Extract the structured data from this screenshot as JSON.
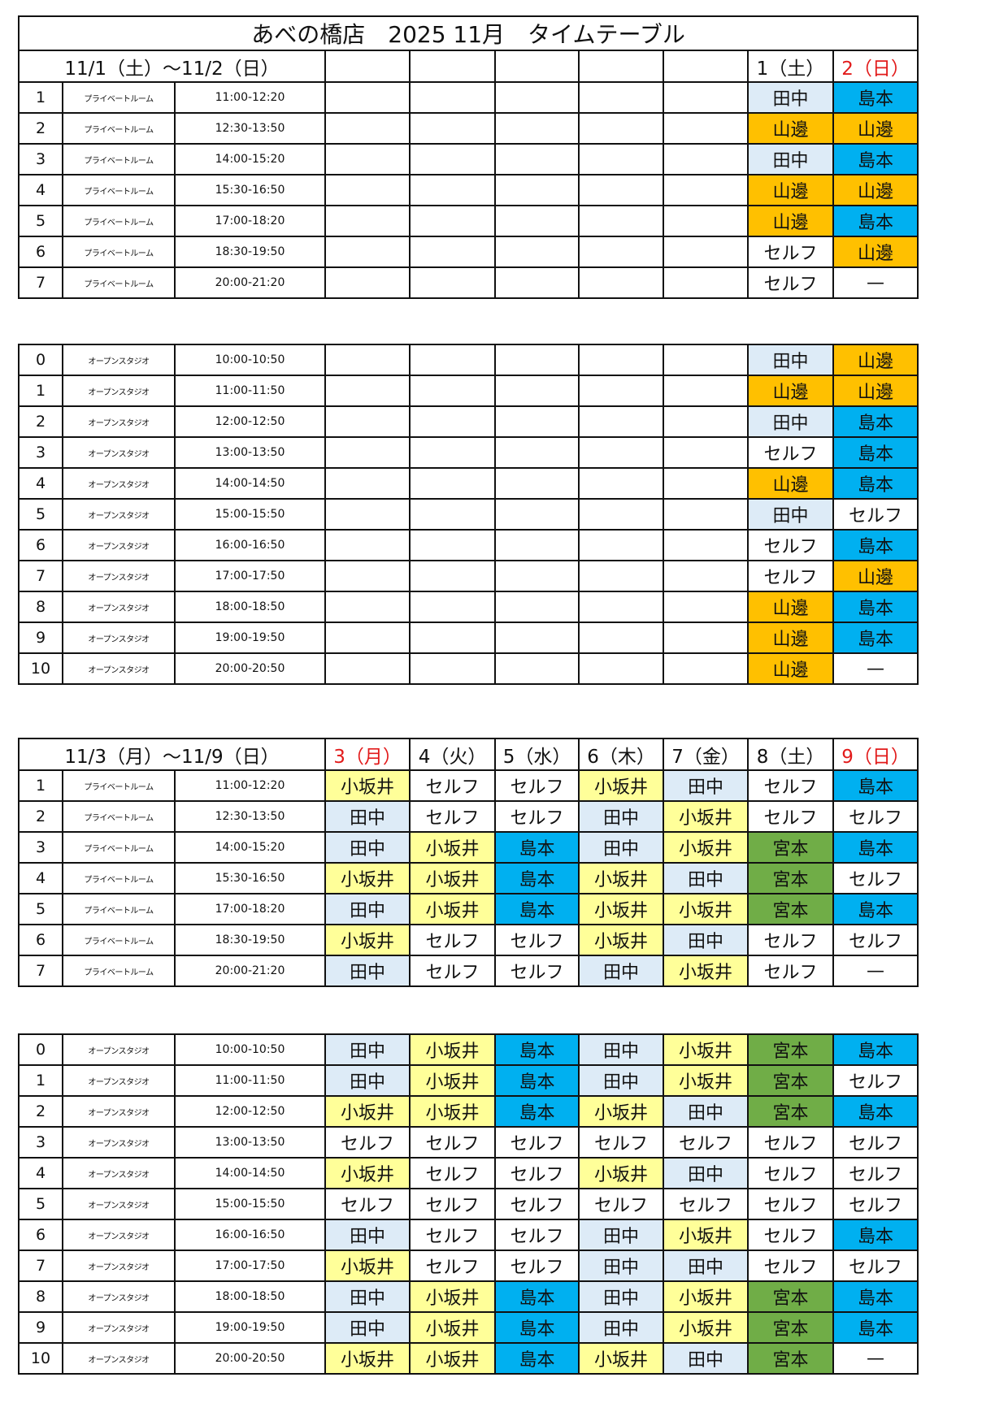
{
  "title": "あべの橋店　2025 11月　タイムテーブル",
  "staff_colors": {
    "田中": "#DDEBF7",
    "島本": "#00B0F0",
    "山邊": "#FFC000",
    "小坂井": "#FFFF99",
    "宮本": "#70AD47",
    "セルフ": "#FFFFFF",
    "—": "#FFFFFF"
  },
  "holiday_color": "#E21B1B",
  "sections": [
    {
      "range": "11/1（土）～11/2（日）",
      "days": [
        {
          "label": "",
          "holiday": false
        },
        {
          "label": "",
          "holiday": false
        },
        {
          "label": "",
          "holiday": false
        },
        {
          "label": "",
          "holiday": false
        },
        {
          "label": "",
          "holiday": false
        },
        {
          "label": "1（土）",
          "holiday": false
        },
        {
          "label": "2（日）",
          "holiday": true
        }
      ],
      "rows": [
        {
          "no": "1",
          "type": "プライベートルーム",
          "time": "11:00-12:20",
          "cells": [
            "",
            "",
            "",
            "",
            "",
            "田中",
            "島本"
          ]
        },
        {
          "no": "2",
          "type": "プライベートルーム",
          "time": "12:30-13:50",
          "cells": [
            "",
            "",
            "",
            "",
            "",
            "山邊",
            "山邊"
          ]
        },
        {
          "no": "3",
          "type": "プライベートルーム",
          "time": "14:00-15:20",
          "cells": [
            "",
            "",
            "",
            "",
            "",
            "田中",
            "島本"
          ]
        },
        {
          "no": "4",
          "type": "プライベートルーム",
          "time": "15:30-16:50",
          "cells": [
            "",
            "",
            "",
            "",
            "",
            "山邊",
            "山邊"
          ]
        },
        {
          "no": "5",
          "type": "プライベートルーム",
          "time": "17:00-18:20",
          "cells": [
            "",
            "",
            "",
            "",
            "",
            "山邊",
            "島本"
          ]
        },
        {
          "no": "6",
          "type": "プライベートルーム",
          "time": "18:30-19:50",
          "cells": [
            "",
            "",
            "",
            "",
            "",
            "セルフ",
            "山邊"
          ]
        },
        {
          "no": "7",
          "type": "プライベートルーム",
          "time": "20:00-21:20",
          "cells": [
            "",
            "",
            "",
            "",
            "",
            "セルフ",
            "—"
          ]
        }
      ]
    },
    {
      "rows": [
        {
          "no": "0",
          "type": "オープンスタジオ",
          "time": "10:00-10:50",
          "cells": [
            "",
            "",
            "",
            "",
            "",
            "田中",
            "山邊"
          ]
        },
        {
          "no": "1",
          "type": "オープンスタジオ",
          "time": "11:00-11:50",
          "cells": [
            "",
            "",
            "",
            "",
            "",
            "山邊",
            "山邊"
          ]
        },
        {
          "no": "2",
          "type": "オープンスタジオ",
          "time": "12:00-12:50",
          "cells": [
            "",
            "",
            "",
            "",
            "",
            "田中",
            "島本"
          ]
        },
        {
          "no": "3",
          "type": "オープンスタジオ",
          "time": "13:00-13:50",
          "cells": [
            "",
            "",
            "",
            "",
            "",
            "セルフ",
            "島本"
          ]
        },
        {
          "no": "4",
          "type": "オープンスタジオ",
          "time": "14:00-14:50",
          "cells": [
            "",
            "",
            "",
            "",
            "",
            "山邊",
            "島本"
          ]
        },
        {
          "no": "5",
          "type": "オープンスタジオ",
          "time": "15:00-15:50",
          "cells": [
            "",
            "",
            "",
            "",
            "",
            "田中",
            "セルフ"
          ]
        },
        {
          "no": "6",
          "type": "オープンスタジオ",
          "time": "16:00-16:50",
          "cells": [
            "",
            "",
            "",
            "",
            "",
            "セルフ",
            "島本"
          ]
        },
        {
          "no": "7",
          "type": "オープンスタジオ",
          "time": "17:00-17:50",
          "cells": [
            "",
            "",
            "",
            "",
            "",
            "セルフ",
            "山邊"
          ]
        },
        {
          "no": "8",
          "type": "オープンスタジオ",
          "time": "18:00-18:50",
          "cells": [
            "",
            "",
            "",
            "",
            "",
            "山邊",
            "島本"
          ]
        },
        {
          "no": "9",
          "type": "オープンスタジオ",
          "time": "19:00-19:50",
          "cells": [
            "",
            "",
            "",
            "",
            "",
            "山邊",
            "島本"
          ]
        },
        {
          "no": "10",
          "type": "オープンスタジオ",
          "time": "20:00-20:50",
          "cells": [
            "",
            "",
            "",
            "",
            "",
            "山邊",
            "—"
          ]
        }
      ]
    },
    {
      "range": "11/3（月）～11/9（日）",
      "days": [
        {
          "label": "3（月）",
          "holiday": true
        },
        {
          "label": "4（火）",
          "holiday": false
        },
        {
          "label": "5（水）",
          "holiday": false
        },
        {
          "label": "6（木）",
          "holiday": false
        },
        {
          "label": "7（金）",
          "holiday": false
        },
        {
          "label": "8（土）",
          "holiday": false
        },
        {
          "label": "9（日）",
          "holiday": true
        }
      ],
      "rows": [
        {
          "no": "1",
          "type": "プライベートルーム",
          "time": "11:00-12:20",
          "cells": [
            "小坂井",
            "セルフ",
            "セルフ",
            "小坂井",
            "田中",
            "セルフ",
            "島本"
          ]
        },
        {
          "no": "2",
          "type": "プライベートルーム",
          "time": "12:30-13:50",
          "cells": [
            "田中",
            "セルフ",
            "セルフ",
            "田中",
            "小坂井",
            "セルフ",
            "セルフ"
          ]
        },
        {
          "no": "3",
          "type": "プライベートルーム",
          "time": "14:00-15:20",
          "cells": [
            "田中",
            "小坂井",
            "島本",
            "田中",
            "小坂井",
            "宮本",
            "島本"
          ]
        },
        {
          "no": "4",
          "type": "プライベートルーム",
          "time": "15:30-16:50",
          "cells": [
            "小坂井",
            "小坂井",
            "島本",
            "小坂井",
            "田中",
            "宮本",
            "セルフ"
          ]
        },
        {
          "no": "5",
          "type": "プライベートルーム",
          "time": "17:00-18:20",
          "cells": [
            "田中",
            "小坂井",
            "島本",
            "小坂井",
            "小坂井",
            "宮本",
            "島本"
          ]
        },
        {
          "no": "6",
          "type": "プライベートルーム",
          "time": "18:30-19:50",
          "cells": [
            "小坂井",
            "セルフ",
            "セルフ",
            "小坂井",
            "田中",
            "セルフ",
            "セルフ"
          ]
        },
        {
          "no": "7",
          "type": "プライベートルーム",
          "time": "20:00-21:20",
          "cells": [
            "田中",
            "セルフ",
            "セルフ",
            "田中",
            "小坂井",
            "セルフ",
            "—"
          ]
        }
      ]
    },
    {
      "rows": [
        {
          "no": "0",
          "type": "オープンスタジオ",
          "time": "10:00-10:50",
          "cells": [
            "田中",
            "小坂井",
            "島本",
            "田中",
            "小坂井",
            "宮本",
            "島本"
          ]
        },
        {
          "no": "1",
          "type": "オープンスタジオ",
          "time": "11:00-11:50",
          "cells": [
            "田中",
            "小坂井",
            "島本",
            "田中",
            "小坂井",
            "宮本",
            "セルフ"
          ]
        },
        {
          "no": "2",
          "type": "オープンスタジオ",
          "time": "12:00-12:50",
          "cells": [
            "小坂井",
            "小坂井",
            "島本",
            "小坂井",
            "田中",
            "宮本",
            "島本"
          ]
        },
        {
          "no": "3",
          "type": "オープンスタジオ",
          "time": "13:00-13:50",
          "cells": [
            "セルフ",
            "セルフ",
            "セルフ",
            "セルフ",
            "セルフ",
            "セルフ",
            "セルフ"
          ]
        },
        {
          "no": "4",
          "type": "オープンスタジオ",
          "time": "14:00-14:50",
          "cells": [
            "小坂井",
            "セルフ",
            "セルフ",
            "小坂井",
            "田中",
            "セルフ",
            "セルフ"
          ]
        },
        {
          "no": "5",
          "type": "オープンスタジオ",
          "time": "15:00-15:50",
          "cells": [
            "セルフ",
            "セルフ",
            "セルフ",
            "セルフ",
            "セルフ",
            "セルフ",
            "セルフ"
          ]
        },
        {
          "no": "6",
          "type": "オープンスタジオ",
          "time": "16:00-16:50",
          "cells": [
            "田中",
            "セルフ",
            "セルフ",
            "田中",
            "小坂井",
            "セルフ",
            "島本"
          ]
        },
        {
          "no": "7",
          "type": "オープンスタジオ",
          "time": "17:00-17:50",
          "cells": [
            "小坂井",
            "セルフ",
            "セルフ",
            "田中",
            "田中",
            "セルフ",
            "セルフ"
          ]
        },
        {
          "no": "8",
          "type": "オープンスタジオ",
          "time": "18:00-18:50",
          "cells": [
            "田中",
            "小坂井",
            "島本",
            "田中",
            "小坂井",
            "宮本",
            "島本"
          ]
        },
        {
          "no": "9",
          "type": "オープンスタジオ",
          "time": "19:00-19:50",
          "cells": [
            "田中",
            "小坂井",
            "島本",
            "田中",
            "小坂井",
            "宮本",
            "島本"
          ]
        },
        {
          "no": "10",
          "type": "オープンスタジオ",
          "time": "20:00-20:50",
          "cells": [
            "小坂井",
            "小坂井",
            "島本",
            "小坂井",
            "田中",
            "宮本",
            "—"
          ]
        }
      ]
    }
  ]
}
